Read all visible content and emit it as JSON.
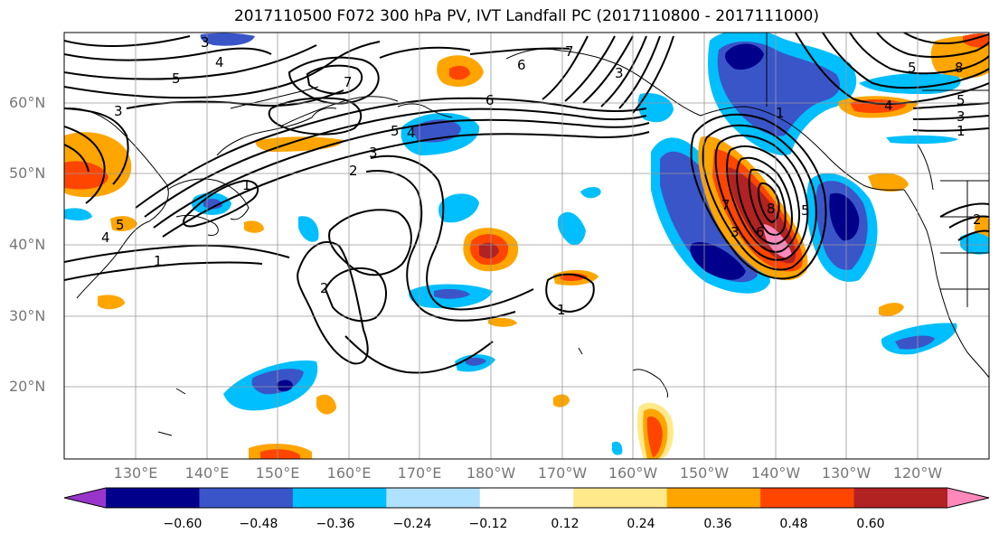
{
  "title": "2017110500 F072 300 hPa PV, IVT Landfall PC (2017110800 - 2017111000)",
  "lat_labels": [
    "60°N",
    "50°N",
    "40°N",
    "30°N",
    "20°N"
  ],
  "lon_labels": [
    "130°E",
    "140°E",
    "150°E",
    "160°E",
    "170°E",
    "180°W",
    "170°W",
    "160°W",
    "150°W",
    "140°W",
    "130°W",
    "120°W"
  ],
  "colorbar": {
    "tick_labels": [
      "−0.60",
      "−0.48",
      "−0.36",
      "−0.24",
      "−0.12",
      "0.12",
      "0.24",
      "0.36",
      "0.48",
      "0.60"
    ],
    "colors": [
      "#9a35cc",
      "#00008b",
      "#3a55c8",
      "#00bfff",
      "#b0e2ff",
      "#ffffff",
      "#ffe98a",
      "#ffa500",
      "#ff4500",
      "#b22222",
      "#ff88bb"
    ]
  },
  "contour_labels": [
    "3",
    "4",
    "5",
    "3",
    "7",
    "6",
    "7",
    "6",
    "5",
    "4",
    "3",
    "2",
    "1",
    "1",
    "2",
    "1",
    "5",
    "8",
    "7",
    "6",
    "5",
    "4",
    "3",
    "1",
    "3",
    "5",
    "8",
    "5",
    "4",
    "3",
    "2",
    "1"
  ]
}
